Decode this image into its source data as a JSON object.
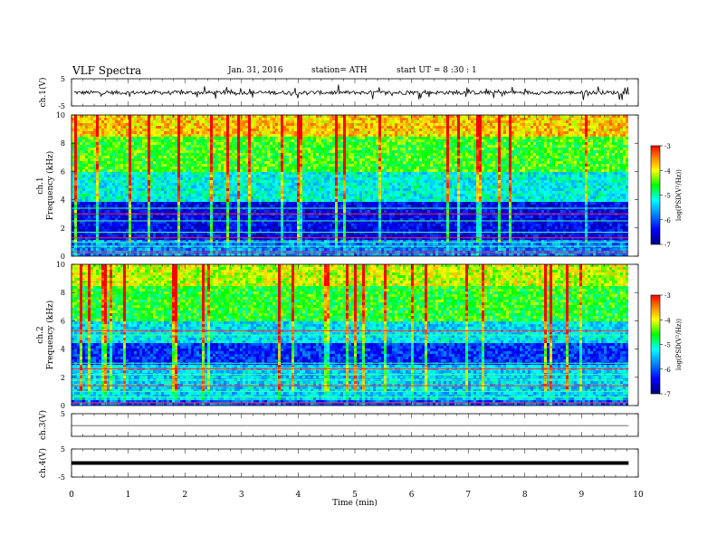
{
  "header": {
    "title": "VLF  Spectra",
    "date": "Jan.  31,  2016",
    "station": "station= ATH",
    "start": "start   UT  =    8  :30 : 1"
  },
  "chart_data": {
    "type": "heatmap",
    "xlabel": "Time  (min)",
    "xlim": [
      0,
      10
    ],
    "xticks": [
      "0",
      "1",
      "2",
      "3",
      "4",
      "5",
      "6",
      "7",
      "8",
      "9",
      "10"
    ],
    "data_end_min": 9.83,
    "panels": [
      {
        "id": "ch1-waveform",
        "type": "line",
        "ylabel": "ch.1(V)",
        "ylim": [
          -5,
          5
        ],
        "yticks": [
          "5",
          "-5"
        ]
      },
      {
        "id": "ch1-spectrogram",
        "type": "heatmap",
        "ylabel": "ch.1",
        "ylabel2": "Frequency  (kHz)",
        "ylim": [
          0,
          10
        ],
        "yticks": [
          "0",
          "2",
          "4",
          "6",
          "8",
          "10"
        ],
        "colorbar": {
          "label": "log(PSD(V²/Hz))",
          "range": [
            -7,
            -3
          ],
          "ticks": [
            "-3",
            "-4",
            "-5",
            "-6",
            "-7"
          ]
        }
      },
      {
        "id": "ch2-spectrogram",
        "type": "heatmap",
        "ylabel": "ch.2",
        "ylabel2": "Frequency  (kHz)",
        "ylim": [
          0,
          10
        ],
        "yticks": [
          "0",
          "2",
          "4",
          "6",
          "8",
          "10"
        ],
        "colorbar": {
          "label": "log(PSD(V²/Hz))",
          "range": [
            -7,
            -3
          ],
          "ticks": [
            "-3",
            "-4",
            "-5",
            "-6",
            "-7"
          ]
        }
      },
      {
        "id": "ch3-waveform",
        "type": "line",
        "ylabel": "ch.3(V)",
        "ylim": [
          -5,
          5
        ],
        "yticks": [
          "5"
        ]
      },
      {
        "id": "ch4-waveform",
        "type": "line",
        "ylabel": "ch.4(V)",
        "ylim": [
          -5,
          5
        ],
        "yticks": [
          "5",
          "-5"
        ]
      }
    ]
  }
}
